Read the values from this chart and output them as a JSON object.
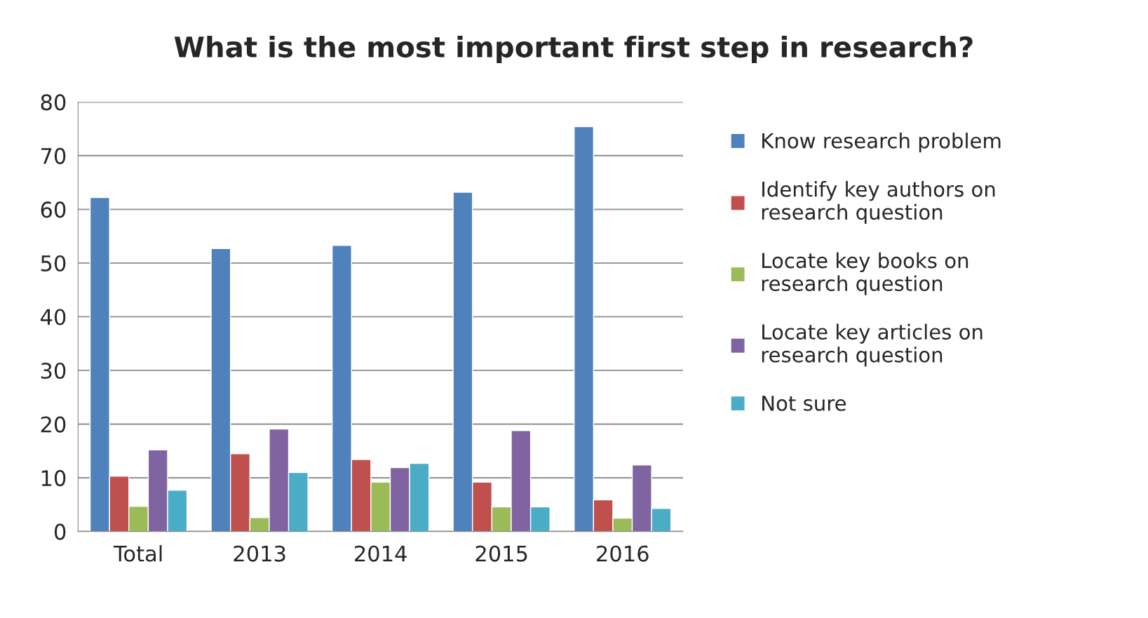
{
  "chart_data": {
    "type": "bar",
    "title": "What is the most important first step in research?",
    "categories": [
      "Total",
      "2013",
      "2014",
      "2015",
      "2016"
    ],
    "series": [
      {
        "name": "Know research problem",
        "color": "#4f81bd",
        "values": [
          62.2,
          52.7,
          53.3,
          63.2,
          75.4
        ]
      },
      {
        "name": "Identify key authors on research question",
        "color": "#c0504d",
        "values": [
          10.3,
          14.5,
          13.4,
          9.2,
          5.9
        ]
      },
      {
        "name": "Locate key books on research question",
        "color": "#9bbb59",
        "values": [
          4.7,
          2.6,
          9.2,
          4.6,
          2.5
        ]
      },
      {
        "name": "Locate key articles on research question",
        "color": "#8064a2",
        "values": [
          15.2,
          19.1,
          11.9,
          18.8,
          12.4
        ]
      },
      {
        "name": "Not sure",
        "color": "#4bacc6",
        "values": [
          7.7,
          11.0,
          12.7,
          4.6,
          4.3
        ]
      }
    ],
    "ylim": [
      0,
      80
    ],
    "yticks": [
      0,
      10,
      20,
      30,
      40,
      50,
      60,
      70,
      80
    ],
    "grid": "y",
    "legend": "right"
  }
}
